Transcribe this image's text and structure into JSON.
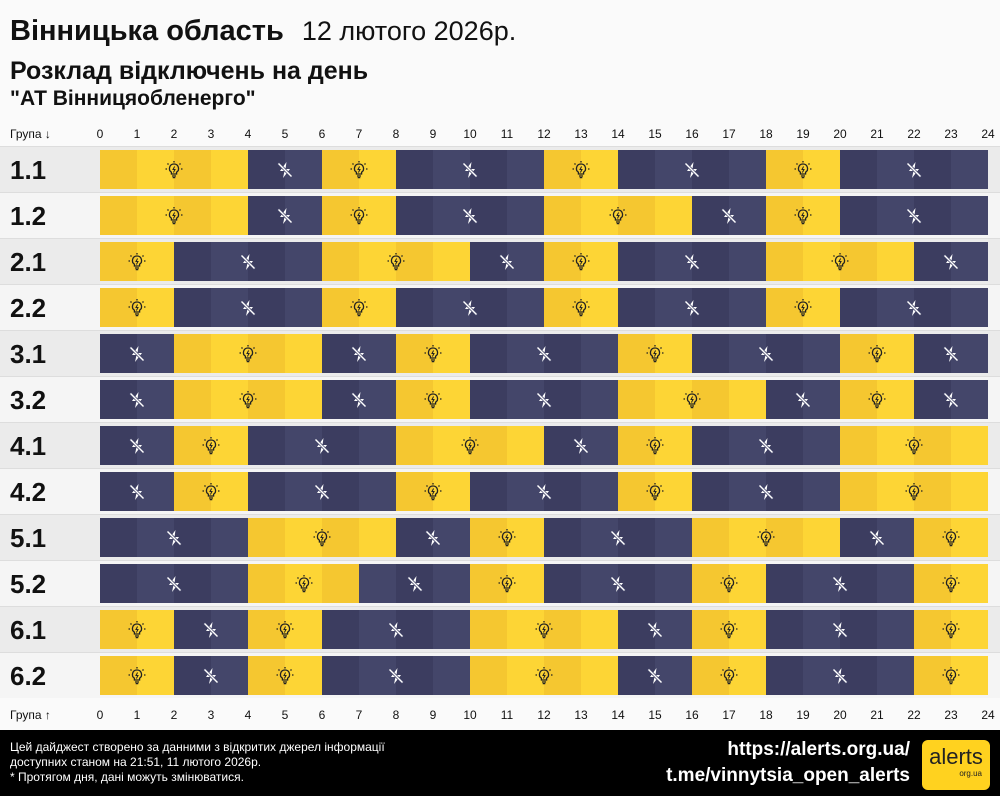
{
  "header": {
    "title": "Вінницька область",
    "date": "12 лютого 2026р.",
    "subtitle": "Розклад відключень на день",
    "company": "\"АТ Вінницяобленерго\""
  },
  "axis": {
    "top_label": "Група ↓",
    "bottom_label": "Група ↑",
    "ticks": [
      "0",
      "1",
      "2",
      "3",
      "4",
      "5",
      "6",
      "7",
      "8",
      "9",
      "10",
      "11",
      "12",
      "13",
      "14",
      "15",
      "16",
      "17",
      "18",
      "19",
      "20",
      "21",
      "22",
      "23",
      "24"
    ]
  },
  "colors": {
    "on": "#fdd535",
    "on_alt": "#f5c730",
    "off": "#44466a",
    "off_alt": "#3c3d60"
  },
  "legend_icons": {
    "on": "lightbulb-icon",
    "off": "power-off-icon"
  },
  "groups": [
    {
      "name": "1.1",
      "segments": [
        [
          "on",
          0,
          4
        ],
        [
          "off",
          4,
          6
        ],
        [
          "on",
          6,
          8
        ],
        [
          "off",
          8,
          12
        ],
        [
          "on",
          12,
          14
        ],
        [
          "off",
          14,
          18
        ],
        [
          "on",
          18,
          20
        ],
        [
          "off",
          20,
          24
        ]
      ]
    },
    {
      "name": "1.2",
      "segments": [
        [
          "on",
          0,
          4
        ],
        [
          "off",
          4,
          6
        ],
        [
          "on",
          6,
          8
        ],
        [
          "off",
          8,
          12
        ],
        [
          "on",
          12,
          16
        ],
        [
          "off",
          16,
          18
        ],
        [
          "on",
          18,
          20
        ],
        [
          "off",
          20,
          24
        ]
      ]
    },
    {
      "name": "2.1",
      "segments": [
        [
          "on",
          0,
          2
        ],
        [
          "off",
          2,
          6
        ],
        [
          "on",
          6,
          10
        ],
        [
          "off",
          10,
          12
        ],
        [
          "on",
          12,
          14
        ],
        [
          "off",
          14,
          18
        ],
        [
          "on",
          18,
          22
        ],
        [
          "off",
          22,
          24
        ]
      ]
    },
    {
      "name": "2.2",
      "segments": [
        [
          "on",
          0,
          2
        ],
        [
          "off",
          2,
          6
        ],
        [
          "on",
          6,
          8
        ],
        [
          "off",
          8,
          12
        ],
        [
          "on",
          12,
          14
        ],
        [
          "off",
          14,
          18
        ],
        [
          "on",
          18,
          20
        ],
        [
          "off",
          20,
          24
        ]
      ]
    },
    {
      "name": "3.1",
      "segments": [
        [
          "off",
          0,
          2
        ],
        [
          "on",
          2,
          6
        ],
        [
          "off",
          6,
          8
        ],
        [
          "on",
          8,
          10
        ],
        [
          "off",
          10,
          14
        ],
        [
          "on",
          14,
          16
        ],
        [
          "off",
          16,
          20
        ],
        [
          "on",
          20,
          22
        ],
        [
          "off",
          22,
          24
        ]
      ]
    },
    {
      "name": "3.2",
      "segments": [
        [
          "off",
          0,
          2
        ],
        [
          "on",
          2,
          6
        ],
        [
          "off",
          6,
          8
        ],
        [
          "on",
          8,
          10
        ],
        [
          "off",
          10,
          14
        ],
        [
          "on",
          14,
          18
        ],
        [
          "off",
          18,
          20
        ],
        [
          "on",
          20,
          22
        ],
        [
          "off",
          22,
          24
        ]
      ]
    },
    {
      "name": "4.1",
      "segments": [
        [
          "off",
          0,
          2
        ],
        [
          "on",
          2,
          4
        ],
        [
          "off",
          4,
          8
        ],
        [
          "on",
          8,
          12
        ],
        [
          "off",
          12,
          14
        ],
        [
          "on",
          14,
          16
        ],
        [
          "off",
          16,
          20
        ],
        [
          "on",
          20,
          24
        ]
      ]
    },
    {
      "name": "4.2",
      "segments": [
        [
          "off",
          0,
          2
        ],
        [
          "on",
          2,
          4
        ],
        [
          "off",
          4,
          8
        ],
        [
          "on",
          8,
          10
        ],
        [
          "off",
          10,
          14
        ],
        [
          "on",
          14,
          16
        ],
        [
          "off",
          16,
          20
        ],
        [
          "on",
          20,
          24
        ]
      ]
    },
    {
      "name": "5.1",
      "segments": [
        [
          "off",
          0,
          4
        ],
        [
          "on",
          4,
          8
        ],
        [
          "off",
          8,
          10
        ],
        [
          "on",
          10,
          12
        ],
        [
          "off",
          12,
          16
        ],
        [
          "on",
          16,
          20
        ],
        [
          "off",
          20,
          22
        ],
        [
          "on",
          22,
          24
        ]
      ]
    },
    {
      "name": "5.2",
      "segments": [
        [
          "off",
          0,
          4
        ],
        [
          "on",
          4,
          7
        ],
        [
          "off",
          7,
          10
        ],
        [
          "on",
          10,
          12
        ],
        [
          "off",
          12,
          16
        ],
        [
          "on",
          16,
          18
        ],
        [
          "off",
          18,
          22
        ],
        [
          "on",
          22,
          24
        ]
      ]
    },
    {
      "name": "6.1",
      "segments": [
        [
          "on",
          0,
          2
        ],
        [
          "off",
          2,
          4
        ],
        [
          "on",
          4,
          6
        ],
        [
          "off",
          6,
          10
        ],
        [
          "on",
          10,
          14
        ],
        [
          "off",
          14,
          16
        ],
        [
          "on",
          16,
          18
        ],
        [
          "off",
          18,
          22
        ],
        [
          "on",
          22,
          24
        ]
      ]
    },
    {
      "name": "6.2",
      "segments": [
        [
          "on",
          0,
          2
        ],
        [
          "off",
          2,
          4
        ],
        [
          "on",
          4,
          6
        ],
        [
          "off",
          6,
          10
        ],
        [
          "on",
          10,
          14
        ],
        [
          "off",
          14,
          16
        ],
        [
          "on",
          16,
          18
        ],
        [
          "off",
          18,
          22
        ],
        [
          "on",
          22,
          24
        ]
      ]
    }
  ],
  "footer": {
    "line1": "Цей дайджест створено за данними з відкритих джерел інформації",
    "line2": "доступних станом на 21:51, 11 лютого 2026р.",
    "line3": "* Протягом дня, дані можуть змінюватися.",
    "url": "https://alerts.org.ua/",
    "telegram": "t.me/vinnytsia_open_alerts",
    "logo_text": "alerts",
    "logo_sub": "org.ua"
  }
}
